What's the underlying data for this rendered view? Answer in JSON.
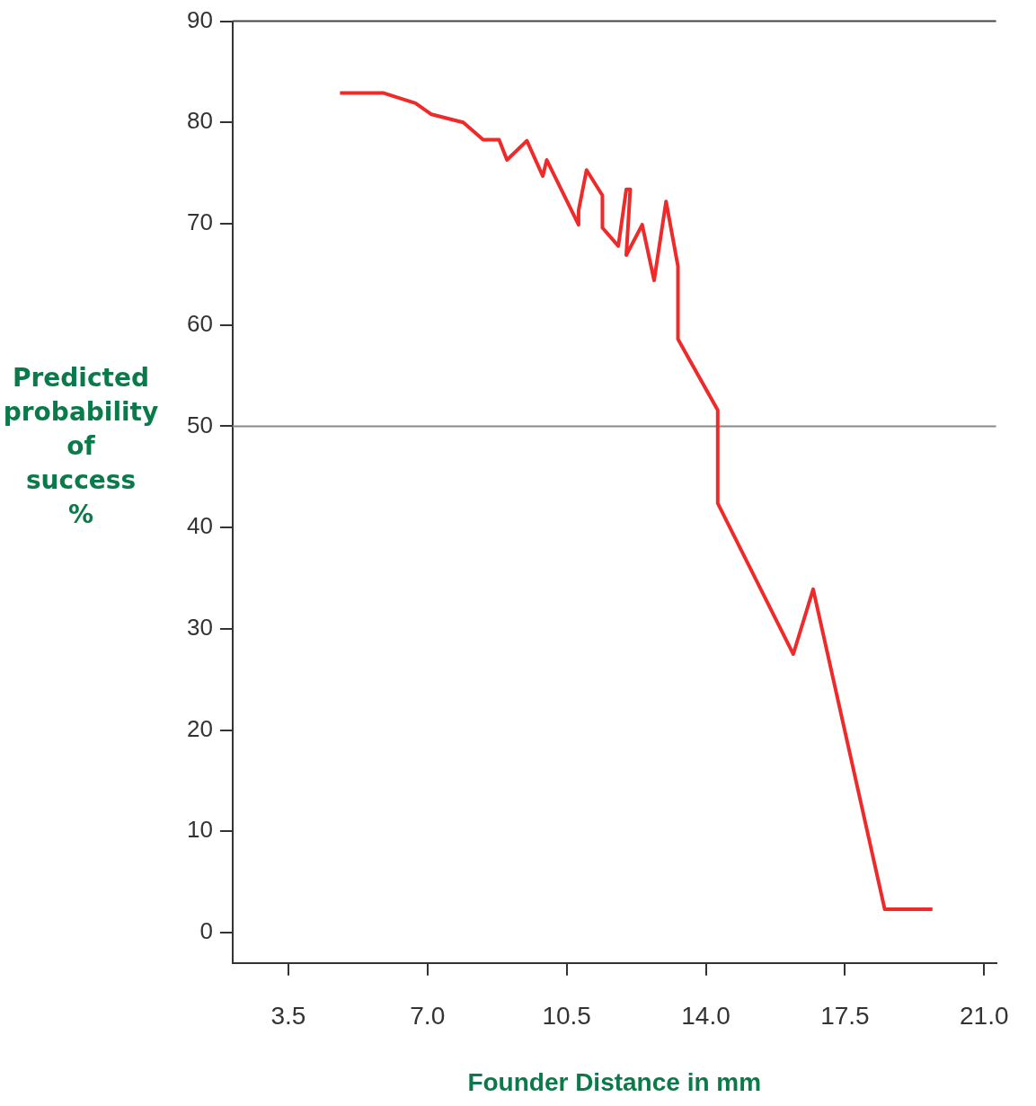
{
  "chart_data": {
    "type": "line",
    "xlabel": "Founder Distance in mm",
    "ylabel": "Predicted\nprobability\nof\nsuccess\n%",
    "xlim": [
      2.1,
      21.3
    ],
    "xticks": [
      {
        "value": 3.5,
        "label": "3.5"
      },
      {
        "value": 7,
        "label": "7.0"
      },
      {
        "value": 10.5,
        "label": "10.5"
      },
      {
        "value": 14,
        "label": "14.0"
      },
      {
        "value": 17.5,
        "label": "17.5"
      },
      {
        "value": 21,
        "label": "21.0"
      }
    ],
    "ylim": [
      -3,
      90
    ],
    "yticks": [
      0,
      10,
      20,
      30,
      40,
      50,
      60,
      70,
      80,
      90
    ],
    "grid": false,
    "legend": false,
    "marker": "none",
    "line_style": "solid",
    "ref_lines": [
      {
        "axis": "y",
        "value": 50,
        "color": "#888888"
      }
    ],
    "series": [
      {
        "color": "#ee2a2a",
        "x": [
          4.8,
          5.9,
          6.7,
          7.1,
          7.9,
          8.4,
          8.8,
          9.0,
          9.5,
          9.9,
          10.0,
          10.8,
          10.8,
          11.0,
          11.4,
          11.4,
          11.8,
          12.0,
          12.1,
          12.0,
          12.4,
          12.7,
          13.0,
          13.3,
          13.3,
          14.3,
          14.3,
          16.2,
          16.7,
          18.5,
          19.7
        ],
        "values": [
          82.9,
          82.9,
          81.9,
          80.8,
          80.0,
          78.3,
          78.3,
          76.3,
          78.2,
          74.7,
          76.3,
          69.9,
          71.3,
          75.3,
          72.8,
          69.6,
          67.8,
          73.4,
          73.4,
          66.9,
          69.9,
          64.4,
          72.2,
          65.8,
          58.6,
          51.6,
          42.4,
          27.5,
          33.9,
          2.3,
          2.3
        ]
      }
    ]
  }
}
